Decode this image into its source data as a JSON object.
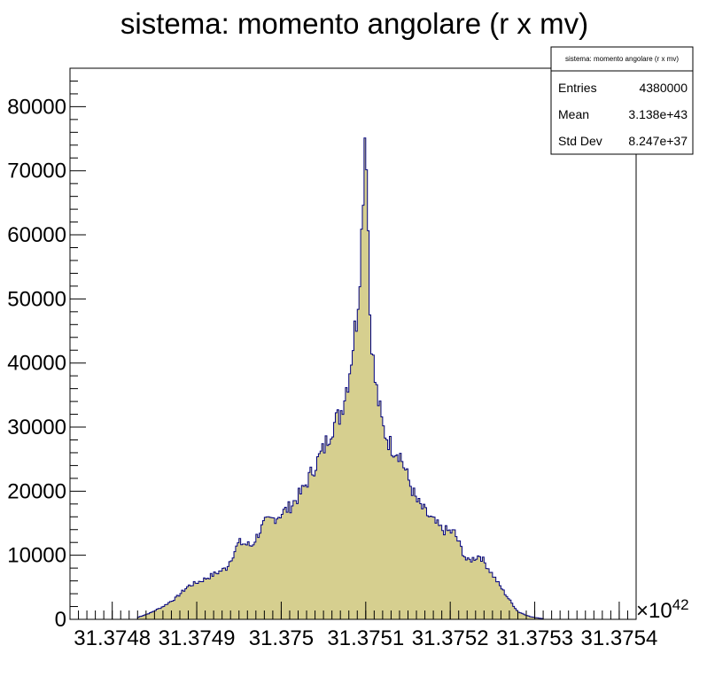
{
  "chart_data": {
    "type": "histogram",
    "title": "sistema: momento angolare (r x mv)",
    "x_multiplier_label": "×10",
    "x_multiplier_exponent": "42",
    "xlim": [
      31.37475,
      31.37542
    ],
    "ylim": [
      0,
      86000
    ],
    "x_ticks": [
      "31.3748",
      "31.3749",
      "31.375",
      "31.3751",
      "31.3752",
      "31.3753",
      "31.3754"
    ],
    "x_tick_values": [
      31.3748,
      31.3749,
      31.375,
      31.3751,
      31.3752,
      31.3753,
      31.3754
    ],
    "y_ticks": [
      "0",
      "10000",
      "20000",
      "30000",
      "40000",
      "50000",
      "60000",
      "70000",
      "80000"
    ],
    "y_tick_values": [
      0,
      10000,
      20000,
      30000,
      40000,
      50000,
      60000,
      70000,
      80000
    ],
    "grid": false,
    "fill_color": "#d6cf8f",
    "line_color": "#00007f",
    "bins": {
      "x": [
        31.37483,
        31.374845,
        31.37486,
        31.374875,
        31.37489,
        31.374905,
        31.37492,
        31.374935,
        31.37495,
        31.374965,
        31.37498,
        31.374995,
        31.37501,
        31.375025,
        31.37504,
        31.37505,
        31.37506,
        31.37507,
        31.37508,
        31.37509,
        31.375095,
        31.3751,
        31.375105,
        31.37511,
        31.37512,
        31.37513,
        31.37514,
        31.37515,
        31.37516,
        31.375175,
        31.37519,
        31.375205,
        31.37522,
        31.375235,
        31.37525,
        31.375265,
        31.37528,
        31.375295,
        31.37531
      ],
      "y": [
        300,
        1000,
        2000,
        3300,
        5200,
        6000,
        7000,
        8000,
        12000,
        11500,
        15000,
        16000,
        17500,
        20000,
        24000,
        26500,
        30000,
        32000,
        38000,
        48000,
        60000,
        80000,
        48000,
        38000,
        30000,
        27000,
        26000,
        22000,
        18500,
        16000,
        14000,
        13500,
        9000,
        10000,
        7000,
        4000,
        1200,
        400,
        100
      ]
    },
    "stats_box": {
      "title": "sistema: momento angolare (r x mv)",
      "rows": [
        {
          "label": "Entries",
          "value": "4380000"
        },
        {
          "label": "Mean",
          "value": "3.138e+43"
        },
        {
          "label": "Std Dev",
          "value": "8.247e+37"
        }
      ]
    }
  }
}
